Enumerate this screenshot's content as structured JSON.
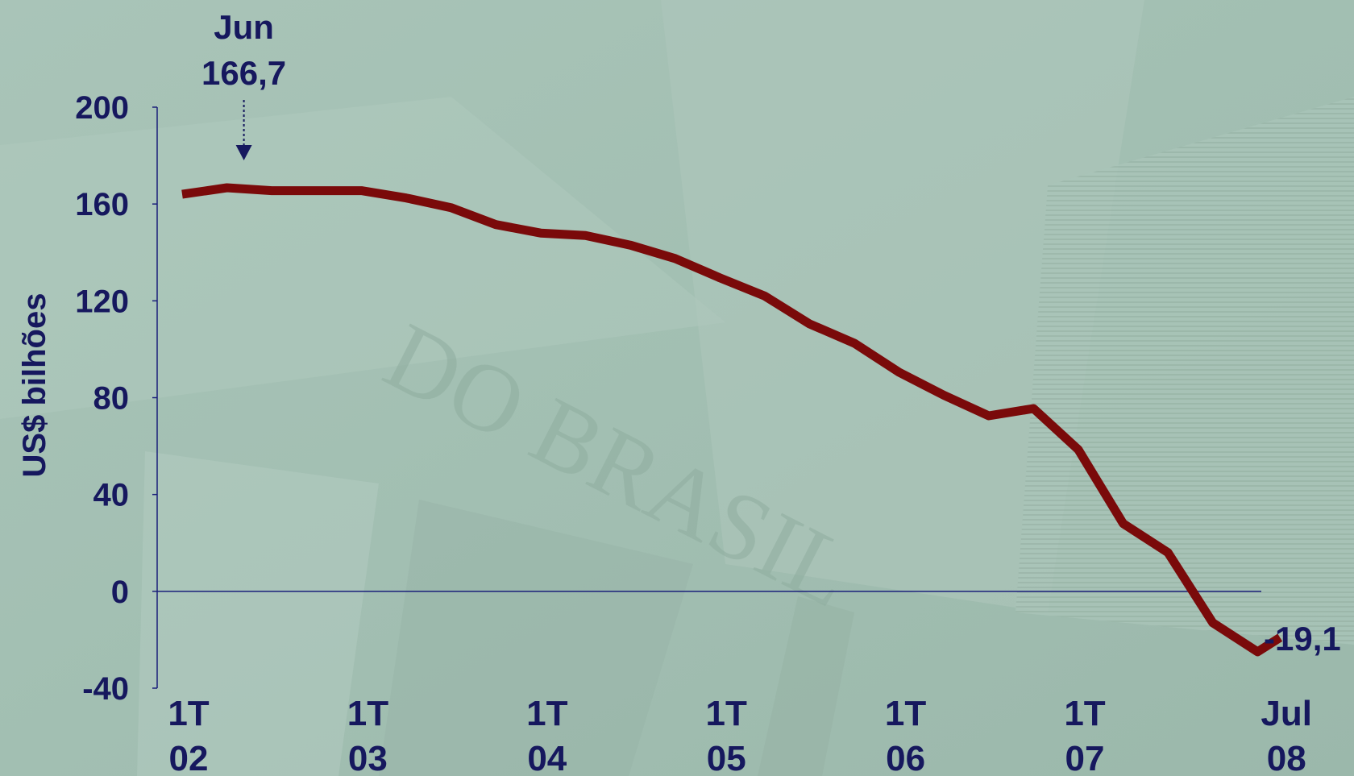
{
  "colors": {
    "background": "#a6c2b6",
    "text": "#16185e",
    "axis": "#1a1f7a",
    "line": "#7a0a0a"
  },
  "chart_data": {
    "type": "line",
    "ylabel": "US$ bilhões",
    "ylim": [
      -40,
      200
    ],
    "yticks": [
      200,
      160,
      120,
      80,
      40,
      0,
      -40
    ],
    "ytick_labels": [
      "200",
      "160",
      "120",
      "80",
      "40",
      "0",
      "-40"
    ],
    "x_categories": [
      [
        "1T",
        "02"
      ],
      [
        "1T",
        "03"
      ],
      [
        "1T",
        "04"
      ],
      [
        "1T",
        "05"
      ],
      [
        "1T",
        "06"
      ],
      [
        "1T",
        "07"
      ],
      [
        "Jul",
        "08"
      ]
    ],
    "x_category_index": [
      0,
      4,
      8,
      12,
      16,
      20,
      24.5
    ],
    "series": [
      {
        "x": [
          0,
          1,
          2,
          3,
          4,
          5,
          6,
          7,
          8,
          9,
          10,
          11,
          12,
          13,
          14,
          15,
          16,
          17,
          18,
          19,
          20,
          21,
          22,
          23,
          24,
          24.5
        ],
        "values": [
          164,
          166.7,
          165.5,
          165.5,
          165.5,
          162.5,
          158.5,
          151.5,
          148,
          147,
          143,
          137.5,
          129.5,
          122,
          110.5,
          102.5,
          90.5,
          81,
          72.5,
          75.5,
          58.5,
          28,
          16,
          -13,
          -25,
          -19.1
        ]
      }
    ],
    "annotations": [
      {
        "label_line1": "Jun",
        "label_line2": "166,7",
        "x": 1,
        "value": 166.7
      },
      {
        "label": "-19,1",
        "x": 24.5,
        "value": -19.1
      }
    ],
    "watermark": "DO BRASIL"
  }
}
